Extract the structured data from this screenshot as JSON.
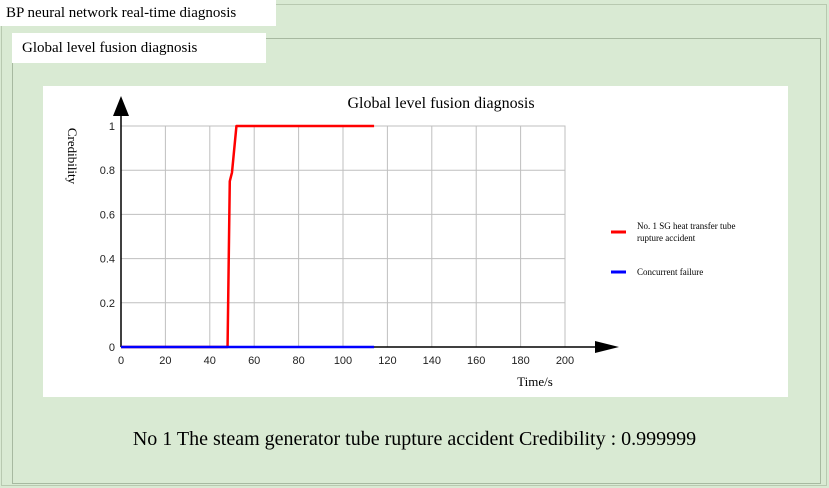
{
  "window": {
    "title": "BP neural network real-time diagnosis"
  },
  "panel": {
    "title": "Global level fusion diagnosis"
  },
  "result": {
    "text": "No 1 The steam generator tube rupture accident  Credibility : 0.999999"
  },
  "chart_data": {
    "type": "line",
    "title": "Global level fusion diagnosis",
    "xlabel": "Time/s",
    "ylabel": "Credibility",
    "xlim": [
      0,
      200
    ],
    "ylim": [
      0,
      1
    ],
    "xticks": [
      0,
      20,
      40,
      60,
      80,
      100,
      120,
      140,
      160,
      180,
      200
    ],
    "yticks": [
      0,
      0.2,
      0.4,
      0.6,
      0.8,
      1
    ],
    "xtick_labels": [
      "0",
      "20",
      "40",
      "60",
      "80",
      "100",
      "120",
      "140",
      "160",
      "180",
      "200"
    ],
    "ytick_labels": [
      "0",
      "0.2",
      "0.4",
      "0.6",
      "0.8",
      "1"
    ],
    "grid": true,
    "legend_position": "right",
    "series": [
      {
        "name": "No. 1 SG heat transfer tube rupture accident",
        "color": "#ff0000",
        "points": [
          [
            0,
            0
          ],
          [
            48,
            0
          ],
          [
            49,
            0.75
          ],
          [
            50,
            0.79
          ],
          [
            52,
            1.0
          ],
          [
            114,
            1.0
          ]
        ]
      },
      {
        "name": "Concurrent failure",
        "color": "#0000ff",
        "points": [
          [
            0,
            0
          ],
          [
            114,
            0
          ]
        ]
      }
    ]
  }
}
